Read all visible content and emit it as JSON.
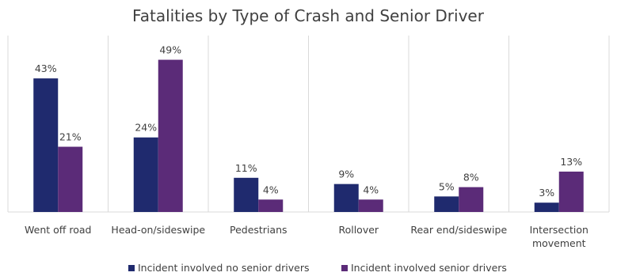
{
  "chart_data": {
    "type": "bar",
    "title": "Fatalities by Type of Crash and Senior Driver",
    "categories": [
      "Went off road",
      "Head-on/sideswipe",
      "Pedestrians",
      "Rollover",
      "Rear end/sideswipe",
      "Intersection movement"
    ],
    "series": [
      {
        "name": "Incident involved no senior drivers",
        "color": "#1f2a6e",
        "values": [
          43,
          24,
          11,
          9,
          5,
          3
        ]
      },
      {
        "name": "Incident involved senior drivers",
        "color": "#5b2b78",
        "values": [
          21,
          49,
          4,
          4,
          8,
          13
        ]
      }
    ],
    "value_suffix": "%",
    "ylim": [
      0,
      55
    ],
    "grid": false,
    "legend": "bottom"
  }
}
